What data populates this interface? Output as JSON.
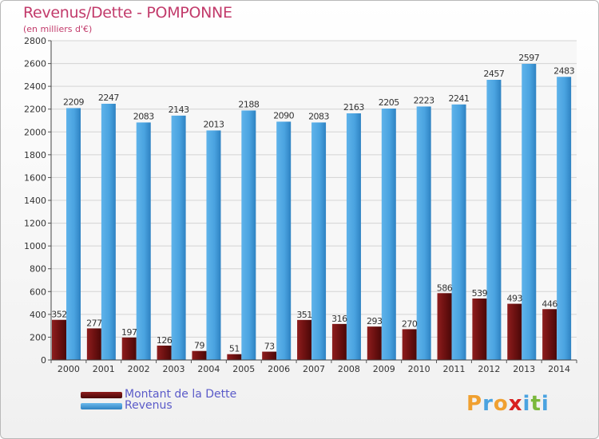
{
  "header": {
    "title": "Revenus/Dette - POMPONNE",
    "subtitle": "(en milliers d'€)"
  },
  "legend": [
    {
      "label": "Montant de la Dette",
      "color": "#7a1515",
      "text_color": "#5b5bc9"
    },
    {
      "label": "Revenus",
      "color": "#4aa3e0",
      "text_color": "#5b5bc9"
    }
  ],
  "logo": {
    "text": "Proxiti",
    "letters": [
      {
        "ch": "P",
        "color": "#f0a030"
      },
      {
        "ch": "r",
        "color": "#4aa3e0"
      },
      {
        "ch": "o",
        "color": "#f0a030"
      },
      {
        "ch": "x",
        "color": "#d82020"
      },
      {
        "ch": "i",
        "color": "#4aa3e0"
      },
      {
        "ch": "t",
        "color": "#7ab83c"
      },
      {
        "ch": "i",
        "color": "#4aa3e0"
      }
    ]
  },
  "chart_data": {
    "type": "bar",
    "title": "Revenus/Dette - POMPONNE",
    "subtitle": "(en milliers d'€)",
    "categories": [
      "2000",
      "2001",
      "2002",
      "2003",
      "2004",
      "2005",
      "2006",
      "2007",
      "2008",
      "2009",
      "2010",
      "2011",
      "2012",
      "2013",
      "2014"
    ],
    "series": [
      {
        "name": "Montant de la Dette",
        "color": "#7a1515",
        "values": [
          352,
          277,
          197,
          126,
          79,
          51,
          73,
          351,
          316,
          293,
          270,
          586,
          539,
          493,
          446
        ]
      },
      {
        "name": "Revenus",
        "color": "#4aa3e0",
        "values": [
          2209,
          2247,
          2083,
          2143,
          2013,
          2188,
          2090,
          2083,
          2163,
          2205,
          2223,
          2241,
          2457,
          2597,
          2483
        ]
      }
    ],
    "ylim": [
      0,
      2800
    ],
    "yticks": [
      0,
      200,
      400,
      600,
      800,
      1000,
      1200,
      1400,
      1600,
      1800,
      2000,
      2200,
      2400,
      2600,
      2800
    ],
    "grid": true,
    "legend_position": "bottom-left"
  }
}
